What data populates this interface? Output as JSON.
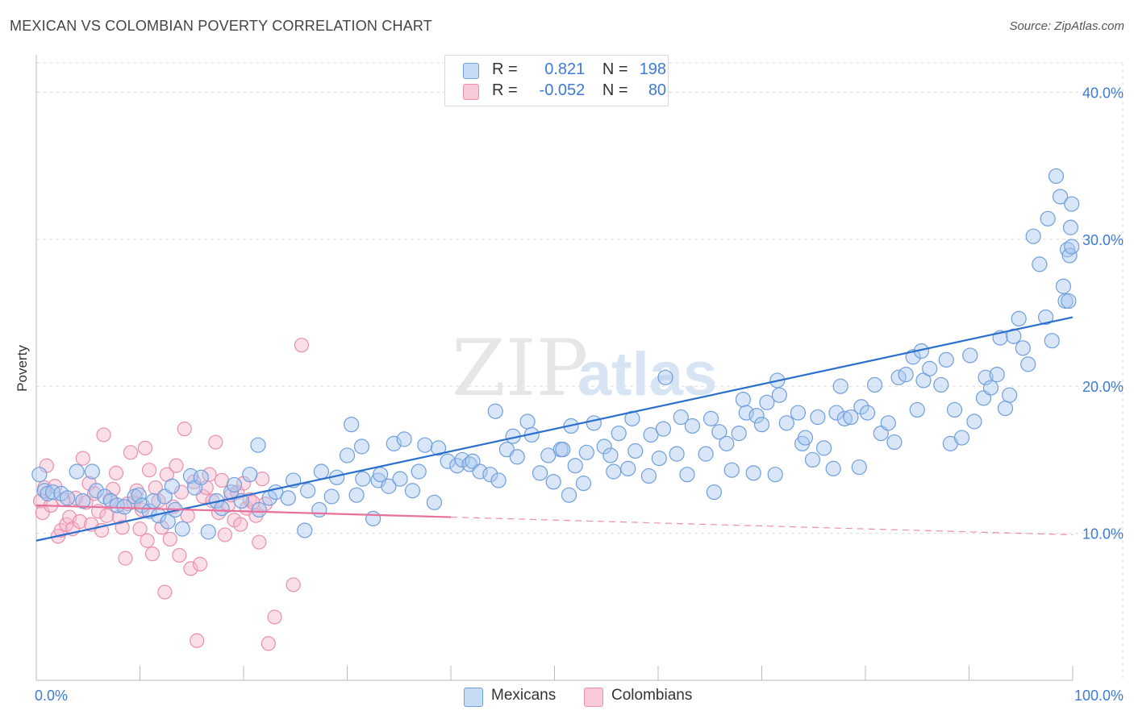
{
  "header": {
    "title": "MEXICAN VS COLOMBIAN POVERTY CORRELATION CHART",
    "source": "Source: ZipAtlas.com"
  },
  "legend": {
    "rows": [
      {
        "r_label": "R =",
        "r_value": "0.821",
        "n_label": "N =",
        "n_value": "198"
      },
      {
        "r_label": "R =",
        "r_value": "-0.052",
        "n_label": "N =",
        "n_value": "80"
      }
    ]
  },
  "bottom_legend": {
    "items": [
      {
        "label": "Mexicans"
      },
      {
        "label": "Colombians"
      }
    ]
  },
  "colors": {
    "mexicans_fill": "#a9c8ef",
    "mexicans_stroke": "#6f9fdd",
    "mexicans_line": "#2a6fce",
    "colombians_fill": "#f6b8cb",
    "colombians_stroke": "#ea8fac",
    "colombians_line": "#e8709a",
    "tick_label": "#3d7bd4",
    "grid": "#dddddd"
  },
  "chart_data": {
    "type": "scatter",
    "title": "MEXICAN VS COLOMBIAN POVERTY CORRELATION CHART",
    "xlabel": "",
    "ylabel": "Poverty",
    "xlim": [
      0,
      100
    ],
    "ylim": [
      0,
      42
    ],
    "x_tick_labels": [
      "0.0%",
      "100.0%"
    ],
    "y_ticks": [
      10,
      20,
      30,
      40
    ],
    "y_tick_labels": [
      "10.0%",
      "20.0%",
      "30.0%",
      "40.0%"
    ],
    "grid": true,
    "legend_placement": "top-center",
    "watermark": "ZIPatlas",
    "series": [
      {
        "name": "Mexicans",
        "r": 0.821,
        "n": 198,
        "trend": {
          "x": [
            0,
            100
          ],
          "y": [
            9.5,
            24.7
          ]
        },
        "points": [
          [
            0.3,
            14.0
          ],
          [
            0.8,
            12.9
          ],
          [
            1.1,
            12.7
          ],
          [
            1.6,
            12.8
          ],
          [
            2.4,
            12.7
          ],
          [
            3.0,
            12.4
          ],
          [
            3.9,
            14.2
          ],
          [
            4.5,
            12.2
          ],
          [
            5.4,
            14.2
          ],
          [
            5.8,
            12.9
          ],
          [
            6.6,
            12.5
          ],
          [
            7.2,
            12.2
          ],
          [
            7.8,
            11.9
          ],
          [
            8.5,
            11.8
          ],
          [
            9.5,
            12.5
          ],
          [
            9.9,
            12.6
          ],
          [
            10.2,
            11.9
          ],
          [
            10.9,
            11.5
          ],
          [
            11.3,
            12.2
          ],
          [
            11.8,
            11.2
          ],
          [
            12.4,
            12.5
          ],
          [
            12.7,
            10.8
          ],
          [
            13.1,
            13.2
          ],
          [
            13.4,
            11.6
          ],
          [
            14.1,
            10.3
          ],
          [
            14.9,
            13.9
          ],
          [
            15.3,
            13.1
          ],
          [
            15.9,
            13.8
          ],
          [
            16.6,
            10.1
          ],
          [
            17.4,
            12.2
          ],
          [
            17.9,
            11.7
          ],
          [
            18.8,
            12.8
          ],
          [
            19.1,
            13.3
          ],
          [
            19.8,
            12.2
          ],
          [
            20.6,
            14.0
          ],
          [
            21.4,
            16.0
          ],
          [
            21.5,
            11.6
          ],
          [
            22.5,
            12.4
          ],
          [
            23.1,
            12.8
          ],
          [
            24.3,
            12.4
          ],
          [
            24.8,
            13.6
          ],
          [
            25.9,
            10.2
          ],
          [
            26.2,
            12.9
          ],
          [
            27.3,
            11.6
          ],
          [
            27.5,
            14.2
          ],
          [
            28.5,
            12.5
          ],
          [
            29.0,
            13.8
          ],
          [
            30.0,
            15.3
          ],
          [
            30.4,
            17.4
          ],
          [
            30.9,
            12.6
          ],
          [
            31.4,
            15.9
          ],
          [
            31.5,
            13.7
          ],
          [
            32.5,
            11.0
          ],
          [
            33.0,
            13.6
          ],
          [
            33.2,
            14.0
          ],
          [
            34.0,
            13.2
          ],
          [
            34.5,
            16.1
          ],
          [
            35.1,
            13.7
          ],
          [
            35.5,
            16.4
          ],
          [
            36.3,
            12.9
          ],
          [
            36.9,
            14.2
          ],
          [
            37.5,
            16.0
          ],
          [
            38.4,
            12.1
          ],
          [
            38.8,
            15.8
          ],
          [
            39.7,
            14.9
          ],
          [
            40.6,
            14.6
          ],
          [
            41.1,
            15.0
          ],
          [
            41.8,
            14.7
          ],
          [
            42.1,
            14.9
          ],
          [
            42.8,
            14.2
          ],
          [
            43.8,
            14.0
          ],
          [
            44.3,
            18.3
          ],
          [
            44.6,
            13.6
          ],
          [
            45.4,
            15.7
          ],
          [
            46.0,
            16.6
          ],
          [
            46.4,
            15.2
          ],
          [
            47.4,
            17.6
          ],
          [
            47.8,
            16.7
          ],
          [
            48.6,
            14.1
          ],
          [
            49.4,
            15.3
          ],
          [
            49.9,
            13.5
          ],
          [
            50.6,
            15.7
          ],
          [
            50.8,
            15.7
          ],
          [
            51.4,
            12.6
          ],
          [
            51.6,
            17.3
          ],
          [
            52.0,
            14.6
          ],
          [
            52.8,
            13.4
          ],
          [
            53.1,
            15.5
          ],
          [
            53.8,
            17.5
          ],
          [
            54.8,
            15.9
          ],
          [
            55.4,
            15.3
          ],
          [
            55.7,
            14.2
          ],
          [
            56.2,
            16.8
          ],
          [
            57.1,
            14.4
          ],
          [
            57.5,
            17.8
          ],
          [
            57.8,
            15.6
          ],
          [
            59.1,
            13.9
          ],
          [
            59.3,
            16.7
          ],
          [
            60.1,
            15.1
          ],
          [
            60.5,
            17.1
          ],
          [
            60.7,
            20.6
          ],
          [
            61.8,
            15.4
          ],
          [
            62.2,
            17.9
          ],
          [
            62.8,
            14.0
          ],
          [
            63.3,
            17.3
          ],
          [
            64.6,
            15.4
          ],
          [
            65.1,
            17.8
          ],
          [
            65.4,
            12.8
          ],
          [
            65.9,
            16.9
          ],
          [
            66.6,
            16.1
          ],
          [
            67.1,
            14.3
          ],
          [
            67.8,
            16.8
          ],
          [
            68.2,
            19.1
          ],
          [
            68.5,
            18.2
          ],
          [
            69.2,
            14.1
          ],
          [
            69.5,
            18.0
          ],
          [
            70.0,
            17.4
          ],
          [
            70.5,
            18.9
          ],
          [
            71.3,
            14.0
          ],
          [
            71.5,
            20.4
          ],
          [
            71.7,
            19.4
          ],
          [
            72.4,
            17.5
          ],
          [
            73.5,
            18.2
          ],
          [
            73.9,
            16.1
          ],
          [
            74.2,
            16.5
          ],
          [
            74.9,
            15.0
          ],
          [
            75.4,
            17.9
          ],
          [
            76.0,
            15.8
          ],
          [
            76.9,
            14.4
          ],
          [
            77.2,
            18.2
          ],
          [
            77.6,
            20.0
          ],
          [
            78.0,
            17.8
          ],
          [
            78.6,
            17.9
          ],
          [
            79.4,
            14.5
          ],
          [
            79.6,
            18.6
          ],
          [
            80.2,
            18.2
          ],
          [
            80.9,
            20.1
          ],
          [
            81.5,
            16.8
          ],
          [
            82.2,
            17.5
          ],
          [
            82.8,
            16.2
          ],
          [
            83.2,
            20.6
          ],
          [
            83.9,
            20.8
          ],
          [
            84.6,
            22.0
          ],
          [
            85.0,
            18.4
          ],
          [
            85.4,
            22.4
          ],
          [
            85.6,
            20.4
          ],
          [
            86.2,
            21.2
          ],
          [
            87.3,
            20.1
          ],
          [
            87.8,
            21.8
          ],
          [
            88.2,
            16.1
          ],
          [
            88.6,
            18.4
          ],
          [
            89.3,
            16.5
          ],
          [
            90.1,
            22.1
          ],
          [
            90.5,
            17.6
          ],
          [
            91.4,
            19.2
          ],
          [
            91.6,
            20.6
          ],
          [
            92.1,
            19.9
          ],
          [
            92.7,
            20.8
          ],
          [
            93.0,
            23.3
          ],
          [
            93.5,
            18.5
          ],
          [
            93.9,
            19.4
          ],
          [
            94.3,
            23.4
          ],
          [
            94.8,
            24.6
          ],
          [
            95.2,
            22.6
          ],
          [
            95.7,
            21.5
          ],
          [
            96.2,
            30.2
          ],
          [
            96.8,
            28.3
          ],
          [
            97.4,
            24.7
          ],
          [
            97.6,
            31.4
          ],
          [
            98.0,
            23.1
          ],
          [
            98.4,
            34.3
          ],
          [
            98.8,
            32.9
          ],
          [
            99.1,
            26.8
          ],
          [
            99.3,
            25.8
          ],
          [
            99.5,
            29.3
          ],
          [
            99.6,
            25.8
          ],
          [
            99.7,
            28.9
          ],
          [
            99.8,
            30.8
          ],
          [
            99.9,
            32.4
          ],
          [
            99.9,
            29.5
          ]
        ]
      },
      {
        "name": "Colombians",
        "r": -0.052,
        "n": 80,
        "trend": {
          "x": [
            0,
            40
          ],
          "y": [
            11.9,
            11.1
          ],
          "dashed_to": {
            "x": 100,
            "y": 9.9
          }
        },
        "points": [
          [
            0.4,
            12.2
          ],
          [
            0.6,
            11.4
          ],
          [
            0.8,
            13.1
          ],
          [
            1.0,
            14.6
          ],
          [
            1.4,
            11.9
          ],
          [
            1.8,
            13.2
          ],
          [
            2.1,
            9.8
          ],
          [
            2.4,
            10.2
          ],
          [
            2.6,
            12.3
          ],
          [
            2.9,
            10.6
          ],
          [
            3.2,
            11.1
          ],
          [
            3.5,
            10.3
          ],
          [
            3.8,
            12.4
          ],
          [
            4.2,
            10.8
          ],
          [
            4.5,
            15.1
          ],
          [
            4.8,
            12.1
          ],
          [
            5.1,
            13.4
          ],
          [
            5.3,
            10.6
          ],
          [
            5.6,
            12.7
          ],
          [
            6.0,
            11.5
          ],
          [
            6.3,
            10.2
          ],
          [
            6.5,
            16.7
          ],
          [
            6.8,
            11.2
          ],
          [
            7.1,
            12.3
          ],
          [
            7.4,
            13.0
          ],
          [
            7.7,
            14.1
          ],
          [
            8.0,
            11.1
          ],
          [
            8.3,
            10.4
          ],
          [
            8.6,
            8.3
          ],
          [
            8.8,
            12.0
          ],
          [
            9.1,
            15.5
          ],
          [
            9.4,
            12.1
          ],
          [
            9.7,
            12.9
          ],
          [
            10.0,
            10.3
          ],
          [
            10.2,
            11.6
          ],
          [
            10.5,
            15.8
          ],
          [
            10.7,
            9.5
          ],
          [
            10.9,
            14.3
          ],
          [
            11.2,
            8.6
          ],
          [
            11.5,
            13.1
          ],
          [
            11.8,
            12.2
          ],
          [
            12.1,
            10.4
          ],
          [
            12.4,
            6.0
          ],
          [
            12.6,
            14.0
          ],
          [
            12.9,
            9.6
          ],
          [
            13.2,
            11.8
          ],
          [
            13.5,
            14.6
          ],
          [
            13.8,
            8.5
          ],
          [
            14.0,
            12.8
          ],
          [
            14.3,
            17.1
          ],
          [
            14.6,
            11.2
          ],
          [
            14.9,
            7.6
          ],
          [
            15.2,
            13.5
          ],
          [
            15.5,
            2.7
          ],
          [
            15.8,
            7.9
          ],
          [
            16.1,
            12.5
          ],
          [
            16.4,
            13.1
          ],
          [
            16.7,
            14.0
          ],
          [
            17.0,
            12.2
          ],
          [
            17.3,
            16.2
          ],
          [
            17.6,
            11.4
          ],
          [
            17.9,
            13.6
          ],
          [
            18.2,
            9.9
          ],
          [
            18.5,
            11.9
          ],
          [
            18.8,
            12.6
          ],
          [
            19.1,
            10.9
          ],
          [
            19.4,
            12.8
          ],
          [
            19.7,
            10.6
          ],
          [
            20.0,
            13.4
          ],
          [
            20.3,
            11.7
          ],
          [
            20.6,
            12.3
          ],
          [
            20.9,
            12.1
          ],
          [
            21.2,
            11.2
          ],
          [
            21.5,
            9.4
          ],
          [
            21.8,
            13.7
          ],
          [
            22.1,
            12.0
          ],
          [
            22.4,
            2.5
          ],
          [
            23.0,
            4.3
          ],
          [
            24.8,
            6.5
          ],
          [
            25.6,
            22.8
          ]
        ]
      }
    ]
  }
}
